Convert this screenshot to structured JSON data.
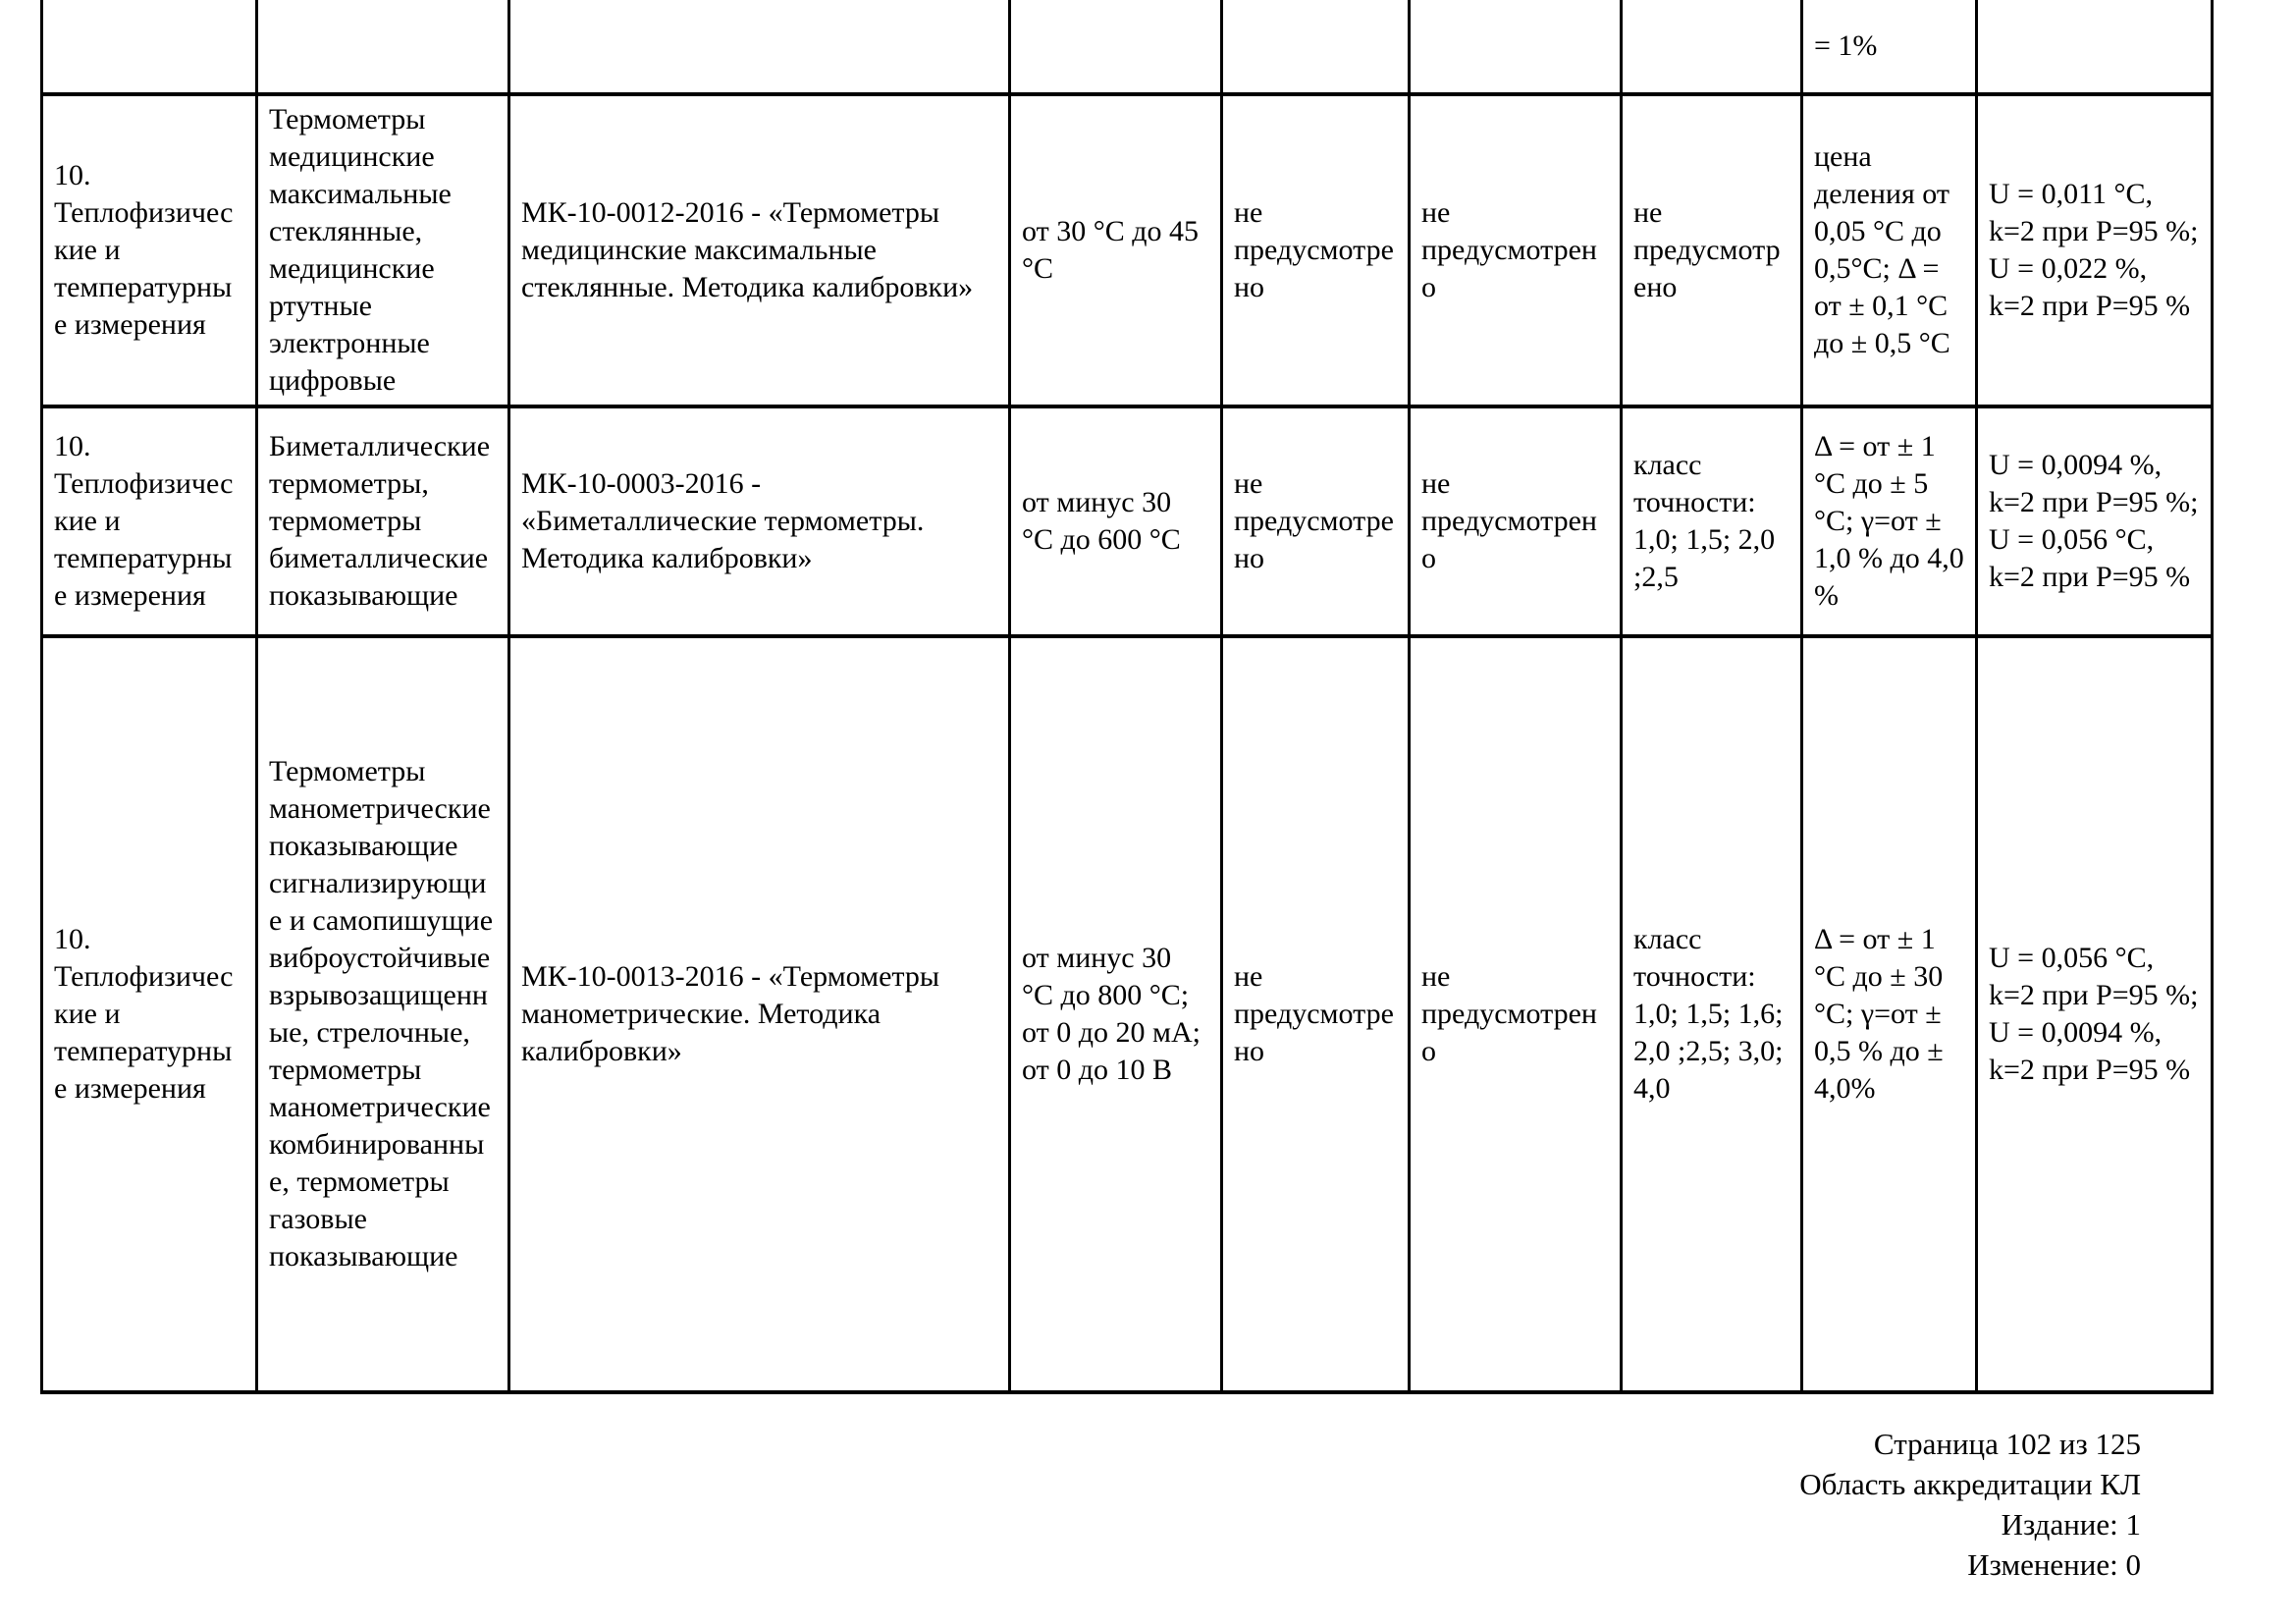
{
  "table": {
    "partial_row": {
      "cells": [
        "",
        "",
        "",
        "",
        "",
        "",
        "",
        "= 1%",
        ""
      ]
    },
    "rows": [
      {
        "cells": [
          "10. Теплофизические и температурные измерения",
          "Термометры медицинские максимальные стеклянные, медицинские ртутные электронные цифровые",
          "МК-10-0012-2016 - «Термометры медицинские максимальные стеклянные. Методика калибровки»",
          "от 30 °С до 45 °С",
          "не предусмотрено",
          "не предусмотрено",
          "не предусмотрено",
          "цена деления от 0,05 °С до 0,5°С; Δ = от ± 0,1 °С до ± 0,5 °С",
          "U = 0,011 °С, k=2 при Р=95 %; U = 0,022 %, k=2 при Р=95 %"
        ]
      },
      {
        "cells": [
          "10. Теплофизические и температурные измерения",
          "Биметаллические термометры, термометры биметаллические показывающие",
          "МК-10-0003-2016 - «Биметаллические термометры. Методика калибровки»",
          "от минус 30 °С до 600 °С",
          "не предусмотрено",
          "не предусмотрено",
          "класс точности: 1,0; 1,5; 2,0 ;2,5",
          "Δ = от ± 1 °С до ± 5 °С; γ=от ± 1,0 % до 4,0 %",
          "U = 0,0094 %, k=2 при Р=95 %; U = 0,056 °С, k=2 при Р=95 %"
        ]
      },
      {
        "cells": [
          "10. Теплофизические и температурные измерения",
          "Термометры манометрические показывающие сигнализирующие и самопишущие виброустойчивые взрывозащищенные, стрелочные, термометры манометрические комбинированные, термометры газовые показывающие",
          "МК-10-0013-2016 - «Термометры манометрические. Методика калибровки»",
          "от минус 30 °С до 800 °С; от 0 до 20 мА; от 0 до 10 В",
          "не предусмотрено",
          "не предусмотрено",
          "класс точности: 1,0; 1,5; 1,6; 2,0 ;2,5; 3,0; 4,0",
          "Δ = от ± 1 °С до ± 30 °С; γ=от ± 0,5 % до ± 4,0%",
          "U = 0,056 °С, k=2 при Р=95 %; U = 0,0094 %, k=2 при Р=95 %"
        ]
      }
    ]
  },
  "footer": {
    "lines": [
      "Страница 102 из 125",
      "Область аккредитации КЛ",
      "Издание: 1",
      "Изменение: 0"
    ]
  }
}
